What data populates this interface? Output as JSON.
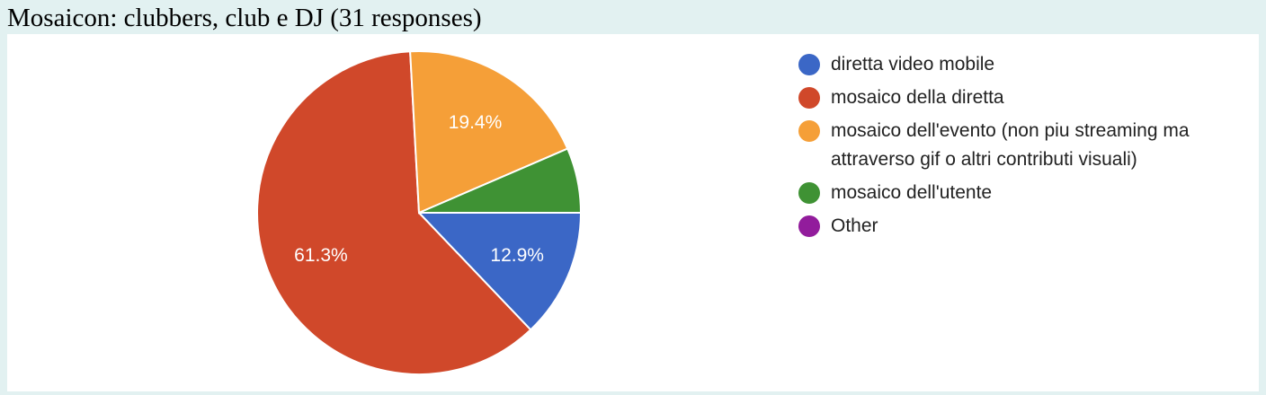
{
  "title": "Mosaicon: clubbers, club e DJ (31 responses)",
  "chart_data": {
    "type": "pie",
    "title": "Mosaicon: clubbers, club e DJ (31 responses)",
    "total_responses": 31,
    "legend_position": "right",
    "slices": [
      {
        "label": "diretta video mobile",
        "percent": 12.9,
        "value_label": "12.9%",
        "color": "#3b67c6"
      },
      {
        "label": "mosaico della diretta",
        "percent": 61.3,
        "value_label": "61.3%",
        "color": "#d0482a"
      },
      {
        "label": "mosaico dell'evento (non piu streaming ma attraverso gif o altri contributi visuali)",
        "percent": 19.4,
        "value_label": "19.4%",
        "color": "#f59f38"
      },
      {
        "label": "mosaico dell'utente",
        "percent": 6.5,
        "value_label": "",
        "color": "#3f9234"
      },
      {
        "label": "Other",
        "percent": 0,
        "value_label": "",
        "color": "#921c9c"
      }
    ]
  }
}
